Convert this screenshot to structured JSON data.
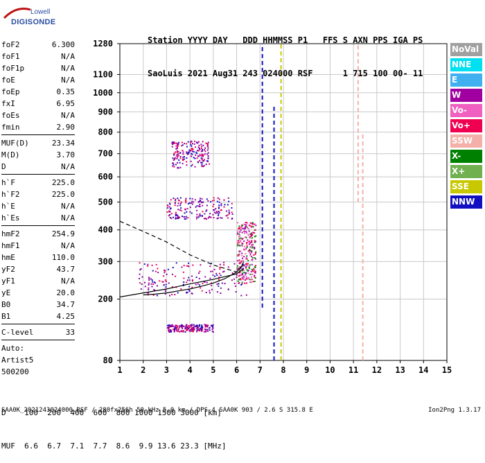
{
  "logo": {
    "top": "Lowell",
    "bottom": "DIGISONDE"
  },
  "header": {
    "line1": "Station YYYY DAY   DDD HHMMSS P1   FFS S AXN PPS IGA PS",
    "line2": "SaoLuis 2021 Aug31 243 024000 RSF      1 715 100 00- 11"
  },
  "params": [
    {
      "type": "row",
      "label": "foF2",
      "value": "6.300"
    },
    {
      "type": "row",
      "label": "foF1",
      "value": "N/A"
    },
    {
      "type": "row",
      "label": "foF1p",
      "value": "N/A"
    },
    {
      "type": "row",
      "label": "foE",
      "value": "N/A"
    },
    {
      "type": "row",
      "label": "foEp",
      "value": "0.35"
    },
    {
      "type": "row",
      "label": "fxI",
      "value": "6.95"
    },
    {
      "type": "row",
      "label": "foEs",
      "value": "N/A"
    },
    {
      "type": "row",
      "label": "fmin",
      "value": "2.90"
    },
    {
      "type": "sep"
    },
    {
      "type": "row",
      "label": "MUF(D)",
      "value": "23.34"
    },
    {
      "type": "row",
      "label": "M(D)",
      "value": "3.70"
    },
    {
      "type": "row",
      "label": "D",
      "value": "N/A"
    },
    {
      "type": "sep"
    },
    {
      "type": "row",
      "label": "h`F",
      "value": "225.0"
    },
    {
      "type": "row",
      "label": "h`F2",
      "value": "225.0"
    },
    {
      "type": "row",
      "label": "h`E",
      "value": "N/A"
    },
    {
      "type": "row",
      "label": "h`Es",
      "value": "N/A"
    },
    {
      "type": "sep"
    },
    {
      "type": "row",
      "label": "hmF2",
      "value": "254.9"
    },
    {
      "type": "row",
      "label": "hmF1",
      "value": "N/A"
    },
    {
      "type": "row",
      "label": "hmE",
      "value": "110.0"
    },
    {
      "type": "row",
      "label": "yF2",
      "value": "43.7"
    },
    {
      "type": "row",
      "label": "yF1",
      "value": "N/A"
    },
    {
      "type": "row",
      "label": "yE",
      "value": "20.0"
    },
    {
      "type": "row",
      "label": "B0",
      "value": "34.7"
    },
    {
      "type": "row",
      "label": "B1",
      "value": "4.25"
    },
    {
      "type": "sep"
    },
    {
      "type": "row",
      "label": "C-level",
      "value": "33"
    },
    {
      "type": "sep"
    },
    {
      "type": "line",
      "label": "Auto:"
    },
    {
      "type": "line",
      "label": "Artist5"
    },
    {
      "type": "line",
      "label": "500200"
    }
  ],
  "legend": [
    {
      "label": "NoVal",
      "color": "#a0a0a0"
    },
    {
      "label": "NNE",
      "color": "#00e0f0"
    },
    {
      "label": "E",
      "color": "#40b0f0"
    },
    {
      "label": "W",
      "color": "#a000a0"
    },
    {
      "label": "Vo-",
      "color": "#f060c0"
    },
    {
      "label": "Vo+",
      "color": "#f00050"
    },
    {
      "label": "SSW",
      "color": "#f4b0a8"
    },
    {
      "label": "X-",
      "color": "#008000"
    },
    {
      "label": "X+",
      "color": "#70b050"
    },
    {
      "label": "SSE",
      "color": "#c8c800"
    },
    {
      "label": "NNW",
      "color": "#1010c0"
    }
  ],
  "muf_table": {
    "line1": "D    100  200  400  600  800 1000 1500 3000 [km]",
    "line2": "MUF  6.6  6.7  7.1  7.7  8.6  9.9 13.6 23.3 [MHz]"
  },
  "footer": {
    "left": "SAA0K_2021243024000.RSF / 280fx256h 50 kHz 5.0 km / DPS-4 SAA0K 903 / 2.6 S 315.8 E",
    "right": "Ion2Png 1.3.17"
  },
  "chart_data": {
    "type": "scatter",
    "title": "SaoLuis 2021 Aug31 243 024000 RSF",
    "xlabel": "",
    "ylabel": "",
    "xlim": [
      1,
      15
    ],
    "ylim": [
      80,
      1280
    ],
    "x_ticks": [
      1,
      2,
      3,
      4,
      5,
      6,
      7,
      8,
      9,
      10,
      11,
      12,
      13,
      14,
      15
    ],
    "y_ticks": [
      80,
      200,
      300,
      400,
      500,
      600,
      700,
      800,
      900,
      1000,
      1100,
      1280
    ],
    "grid": true,
    "y_scale": "sqrt",
    "traces": [
      {
        "name": "O-trace",
        "x": [
          2.0,
          2.5,
          3.0,
          3.5,
          4.0,
          4.5,
          5.0,
          5.5,
          6.0,
          6.2,
          6.3
        ],
        "y": [
          210,
          212,
          215,
          220,
          225,
          232,
          240,
          252,
          270,
          285,
          300
        ]
      },
      {
        "name": "h-profile",
        "x": [
          1.0,
          2.0,
          3.0,
          4.0,
          5.0,
          6.0,
          6.3
        ],
        "y": [
          205,
          215,
          225,
          238,
          250,
          265,
          280
        ]
      },
      {
        "name": "dashed-fit",
        "x": [
          1.0,
          2.0,
          3.0,
          4.0,
          5.0,
          6.0
        ],
        "y": [
          430,
          395,
          360,
          320,
          290,
          270
        ]
      }
    ],
    "echo_bands": [
      {
        "color": "purple",
        "x": [
          1.8,
          6.4
        ],
        "y": [
          210,
          300
        ]
      },
      {
        "color": "red",
        "x": [
          6.0,
          6.8
        ],
        "y": [
          240,
          430
        ]
      },
      {
        "color": "purple",
        "x": [
          3.0,
          5.8
        ],
        "y": [
          440,
          520
        ]
      },
      {
        "color": "purple",
        "x": [
          3.2,
          4.8
        ],
        "y": [
          640,
          760
        ]
      },
      {
        "color": "purple",
        "x": [
          3.0,
          5.0
        ],
        "y": [
          130,
          145
        ]
      }
    ],
    "vertical_lines": [
      {
        "x": 7.1,
        "y": [
          180,
          1280
        ],
        "color": "#1010c0"
      },
      {
        "x": 7.6,
        "y": [
          80,
          930
        ],
        "color": "#1010c0"
      },
      {
        "x": 7.9,
        "y": [
          80,
          1280
        ],
        "color": "#c8c800"
      },
      {
        "x": 11.2,
        "y": [
          500,
          1280
        ],
        "color": "#f4b0a8"
      },
      {
        "x": 11.4,
        "y": [
          80,
          800
        ],
        "color": "#f4b0a8"
      }
    ]
  }
}
